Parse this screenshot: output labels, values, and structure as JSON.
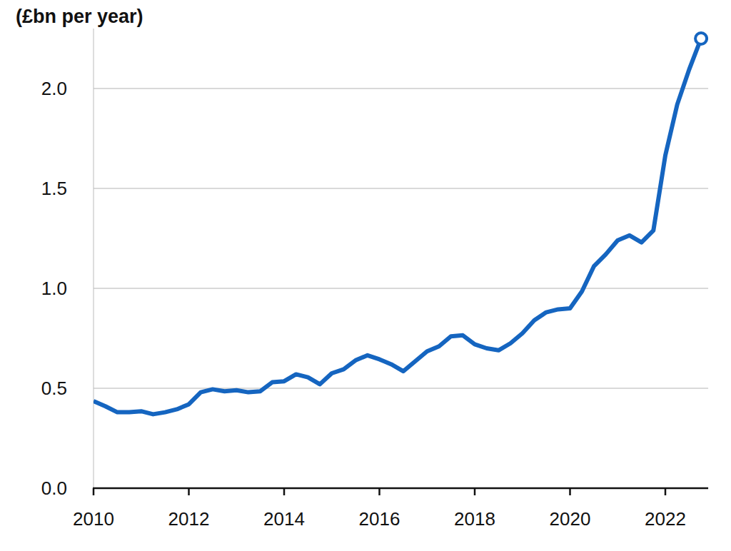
{
  "chart_data": {
    "type": "line",
    "y_label": "(£bn per year)",
    "x": [
      2010,
      2010.25,
      2010.5,
      2010.75,
      2011,
      2011.25,
      2011.5,
      2011.75,
      2012,
      2012.25,
      2012.5,
      2012.75,
      2013,
      2013.25,
      2013.5,
      2013.75,
      2014,
      2014.25,
      2014.5,
      2014.75,
      2015,
      2015.25,
      2015.5,
      2015.75,
      2016,
      2016.25,
      2016.5,
      2016.75,
      2017,
      2017.25,
      2017.5,
      2017.75,
      2018,
      2018.25,
      2018.5,
      2018.75,
      2019,
      2019.25,
      2019.5,
      2019.75,
      2020,
      2020.25,
      2020.5,
      2020.75,
      2021,
      2021.25,
      2021.5,
      2021.75,
      2022,
      2022.25,
      2022.5,
      2022.75
    ],
    "values": [
      0.436,
      0.41,
      0.38,
      0.38,
      0.385,
      0.37,
      0.38,
      0.395,
      0.42,
      0.48,
      0.495,
      0.485,
      0.49,
      0.48,
      0.485,
      0.53,
      0.535,
      0.57,
      0.555,
      0.52,
      0.575,
      0.595,
      0.64,
      0.665,
      0.645,
      0.62,
      0.585,
      0.635,
      0.685,
      0.71,
      0.76,
      0.765,
      0.72,
      0.7,
      0.69,
      0.725,
      0.775,
      0.84,
      0.88,
      0.895,
      0.9,
      0.985,
      1.11,
      1.17,
      1.24,
      1.265,
      1.23,
      1.29,
      1.665,
      1.92,
      2.095,
      2.25
    ],
    "color": "#1565c0",
    "marker": "end",
    "xlim": [
      2010,
      2022.9
    ],
    "xticks": [
      2010,
      2012,
      2014,
      2016,
      2018,
      2020,
      2022
    ],
    "ylim": [
      0,
      2.3
    ],
    "yticks": [
      {
        "value": 0,
        "label": "0.0"
      },
      0.5,
      {
        "value": 1,
        "label": "1.0"
      },
      1.5,
      {
        "value": 2,
        "label": "2.0"
      }
    ],
    "grid": true
  }
}
